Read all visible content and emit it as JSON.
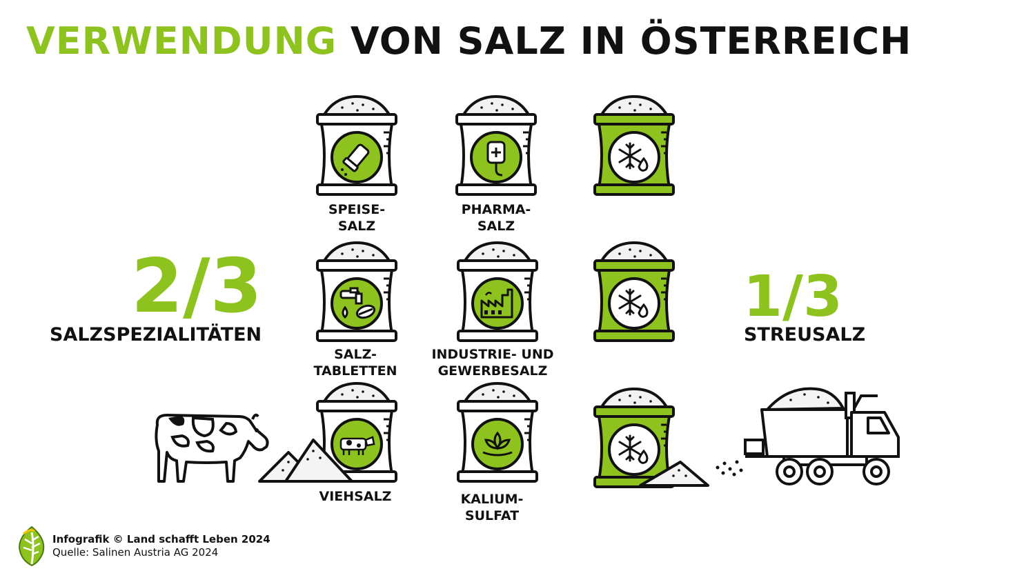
{
  "title": {
    "part1": "VERWENDUNG",
    "part2": "VON SALZ IN ÖSTERREICH"
  },
  "colors": {
    "accent": "#8dc21f",
    "ink": "#111111",
    "background": "#ffffff"
  },
  "left_stat": {
    "value": "2/3",
    "label": "SALZSPEZIALITÄTEN"
  },
  "right_stat": {
    "value": "1/3",
    "label": "STREUSALZ"
  },
  "products": [
    {
      "line1": "SPEISE-",
      "line2": "SALZ",
      "icon": "salt-shaker-icon"
    },
    {
      "line1": "PHARMA-",
      "line2": "SALZ",
      "icon": "iv-bag-icon"
    },
    {
      "line1": "SALZ-",
      "line2": "TABLETTEN",
      "icon": "water-tap-tablet-icon"
    },
    {
      "line1": "INDUSTRIE- UND",
      "line2": "GEWERBESALZ",
      "icon": "factory-icon"
    },
    {
      "line1": "VIEHSALZ",
      "line2": "",
      "icon": "cow-icon"
    },
    {
      "line1": "KALIUM-",
      "line2": "SULFAT",
      "icon": "plant-icon"
    }
  ],
  "road_salt_icon": "snowflake-drop-icon",
  "footer": {
    "credit": "Infografik © Land schafft Leben 2024",
    "source": "Quelle: Salinen Austria AG 2024"
  }
}
